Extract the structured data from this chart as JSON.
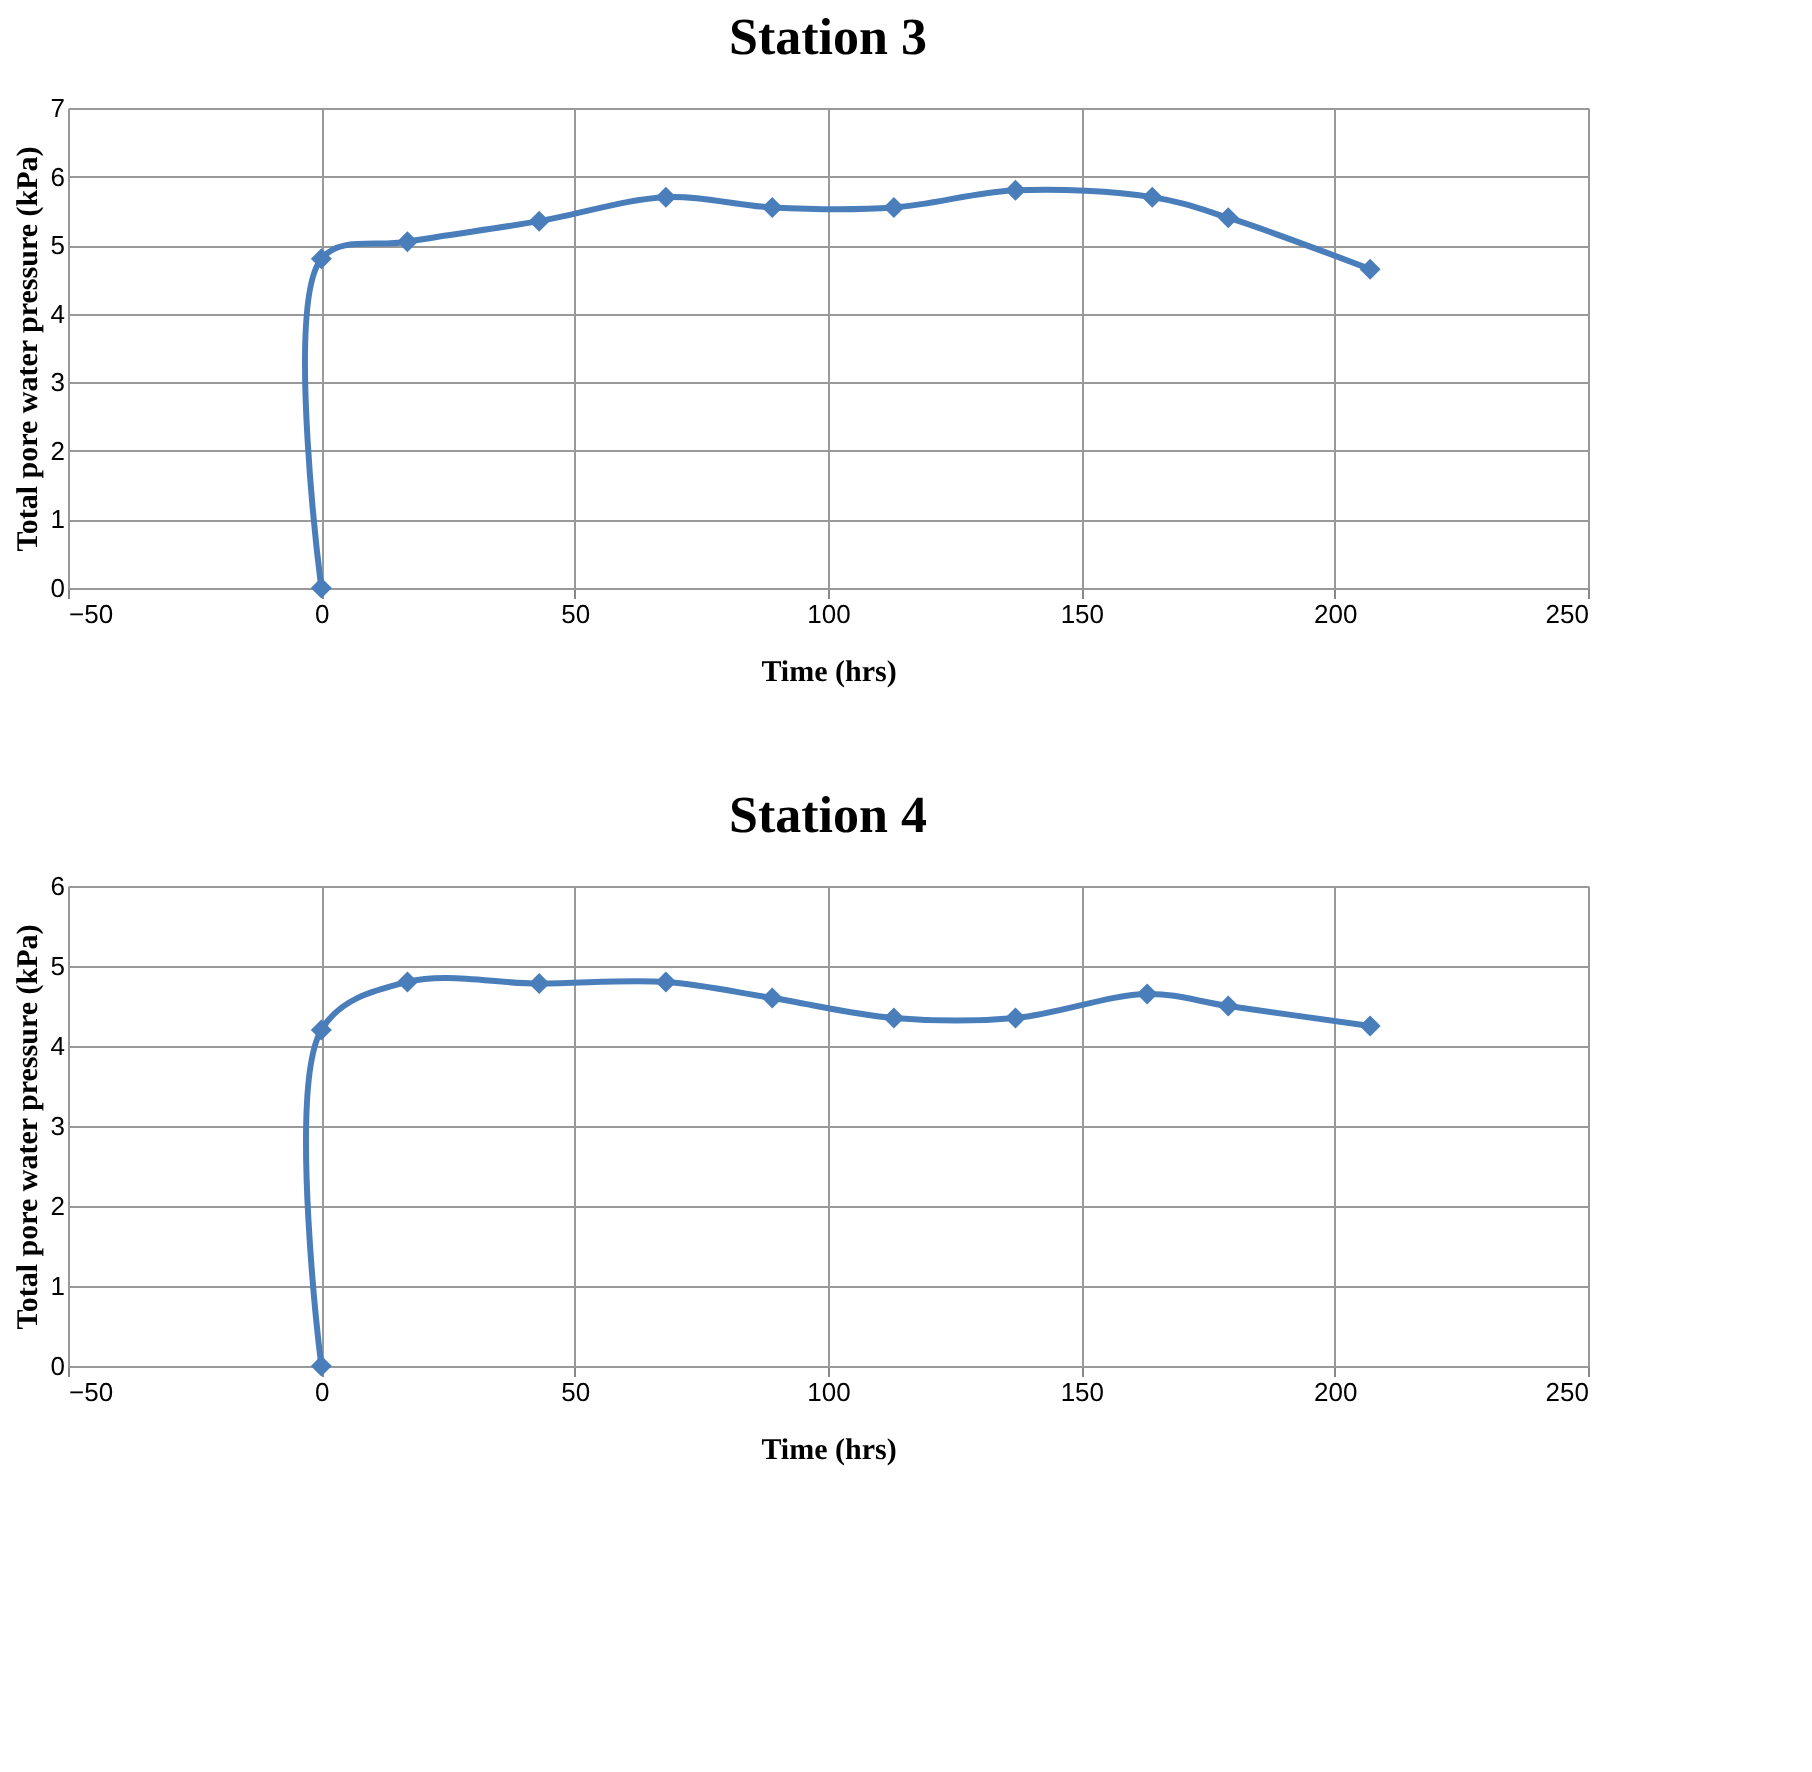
{
  "chart_data": [
    {
      "type": "line",
      "title": "Station 3",
      "xlabel": "Time (hrs)",
      "ylabel": "Total pore water pressure (kPa)",
      "x": [
        0,
        0,
        17,
        43,
        68,
        89,
        113,
        137,
        164,
        179,
        207
      ],
      "series": [
        {
          "color": "#4a7ebb",
          "values": [
            0,
            4.8,
            5.05,
            5.35,
            5.7,
            5.55,
            5.55,
            5.8,
            5.7,
            5.4,
            4.65
          ]
        }
      ],
      "xlim": [
        -50,
        250
      ],
      "xticks": [
        -50,
        0,
        50,
        100,
        150,
        200,
        250
      ],
      "ylim": [
        0,
        7
      ],
      "yticks": [
        0,
        1,
        2,
        3,
        4,
        5,
        6,
        7
      ],
      "grid": true,
      "marker": "diamond",
      "line_style": "solid"
    },
    {
      "type": "line",
      "title": "Station 4",
      "xlabel": "Time (hrs)",
      "ylabel": "Total pore water pressure (kPa)",
      "x": [
        0,
        0,
        17,
        43,
        68,
        89,
        113,
        137,
        163,
        179,
        207
      ],
      "series": [
        {
          "color": "#4a7ebb",
          "values": [
            0,
            4.2,
            4.8,
            4.78,
            4.8,
            4.6,
            4.35,
            4.35,
            4.65,
            4.5,
            4.25
          ]
        }
      ],
      "xlim": [
        -50,
        250
      ],
      "xticks": [
        -50,
        0,
        50,
        100,
        150,
        200,
        250
      ],
      "ylim": [
        0,
        6
      ],
      "yticks": [
        0,
        1,
        2,
        3,
        4,
        5,
        6
      ],
      "grid": true,
      "marker": "diamond",
      "line_style": "solid"
    }
  ]
}
